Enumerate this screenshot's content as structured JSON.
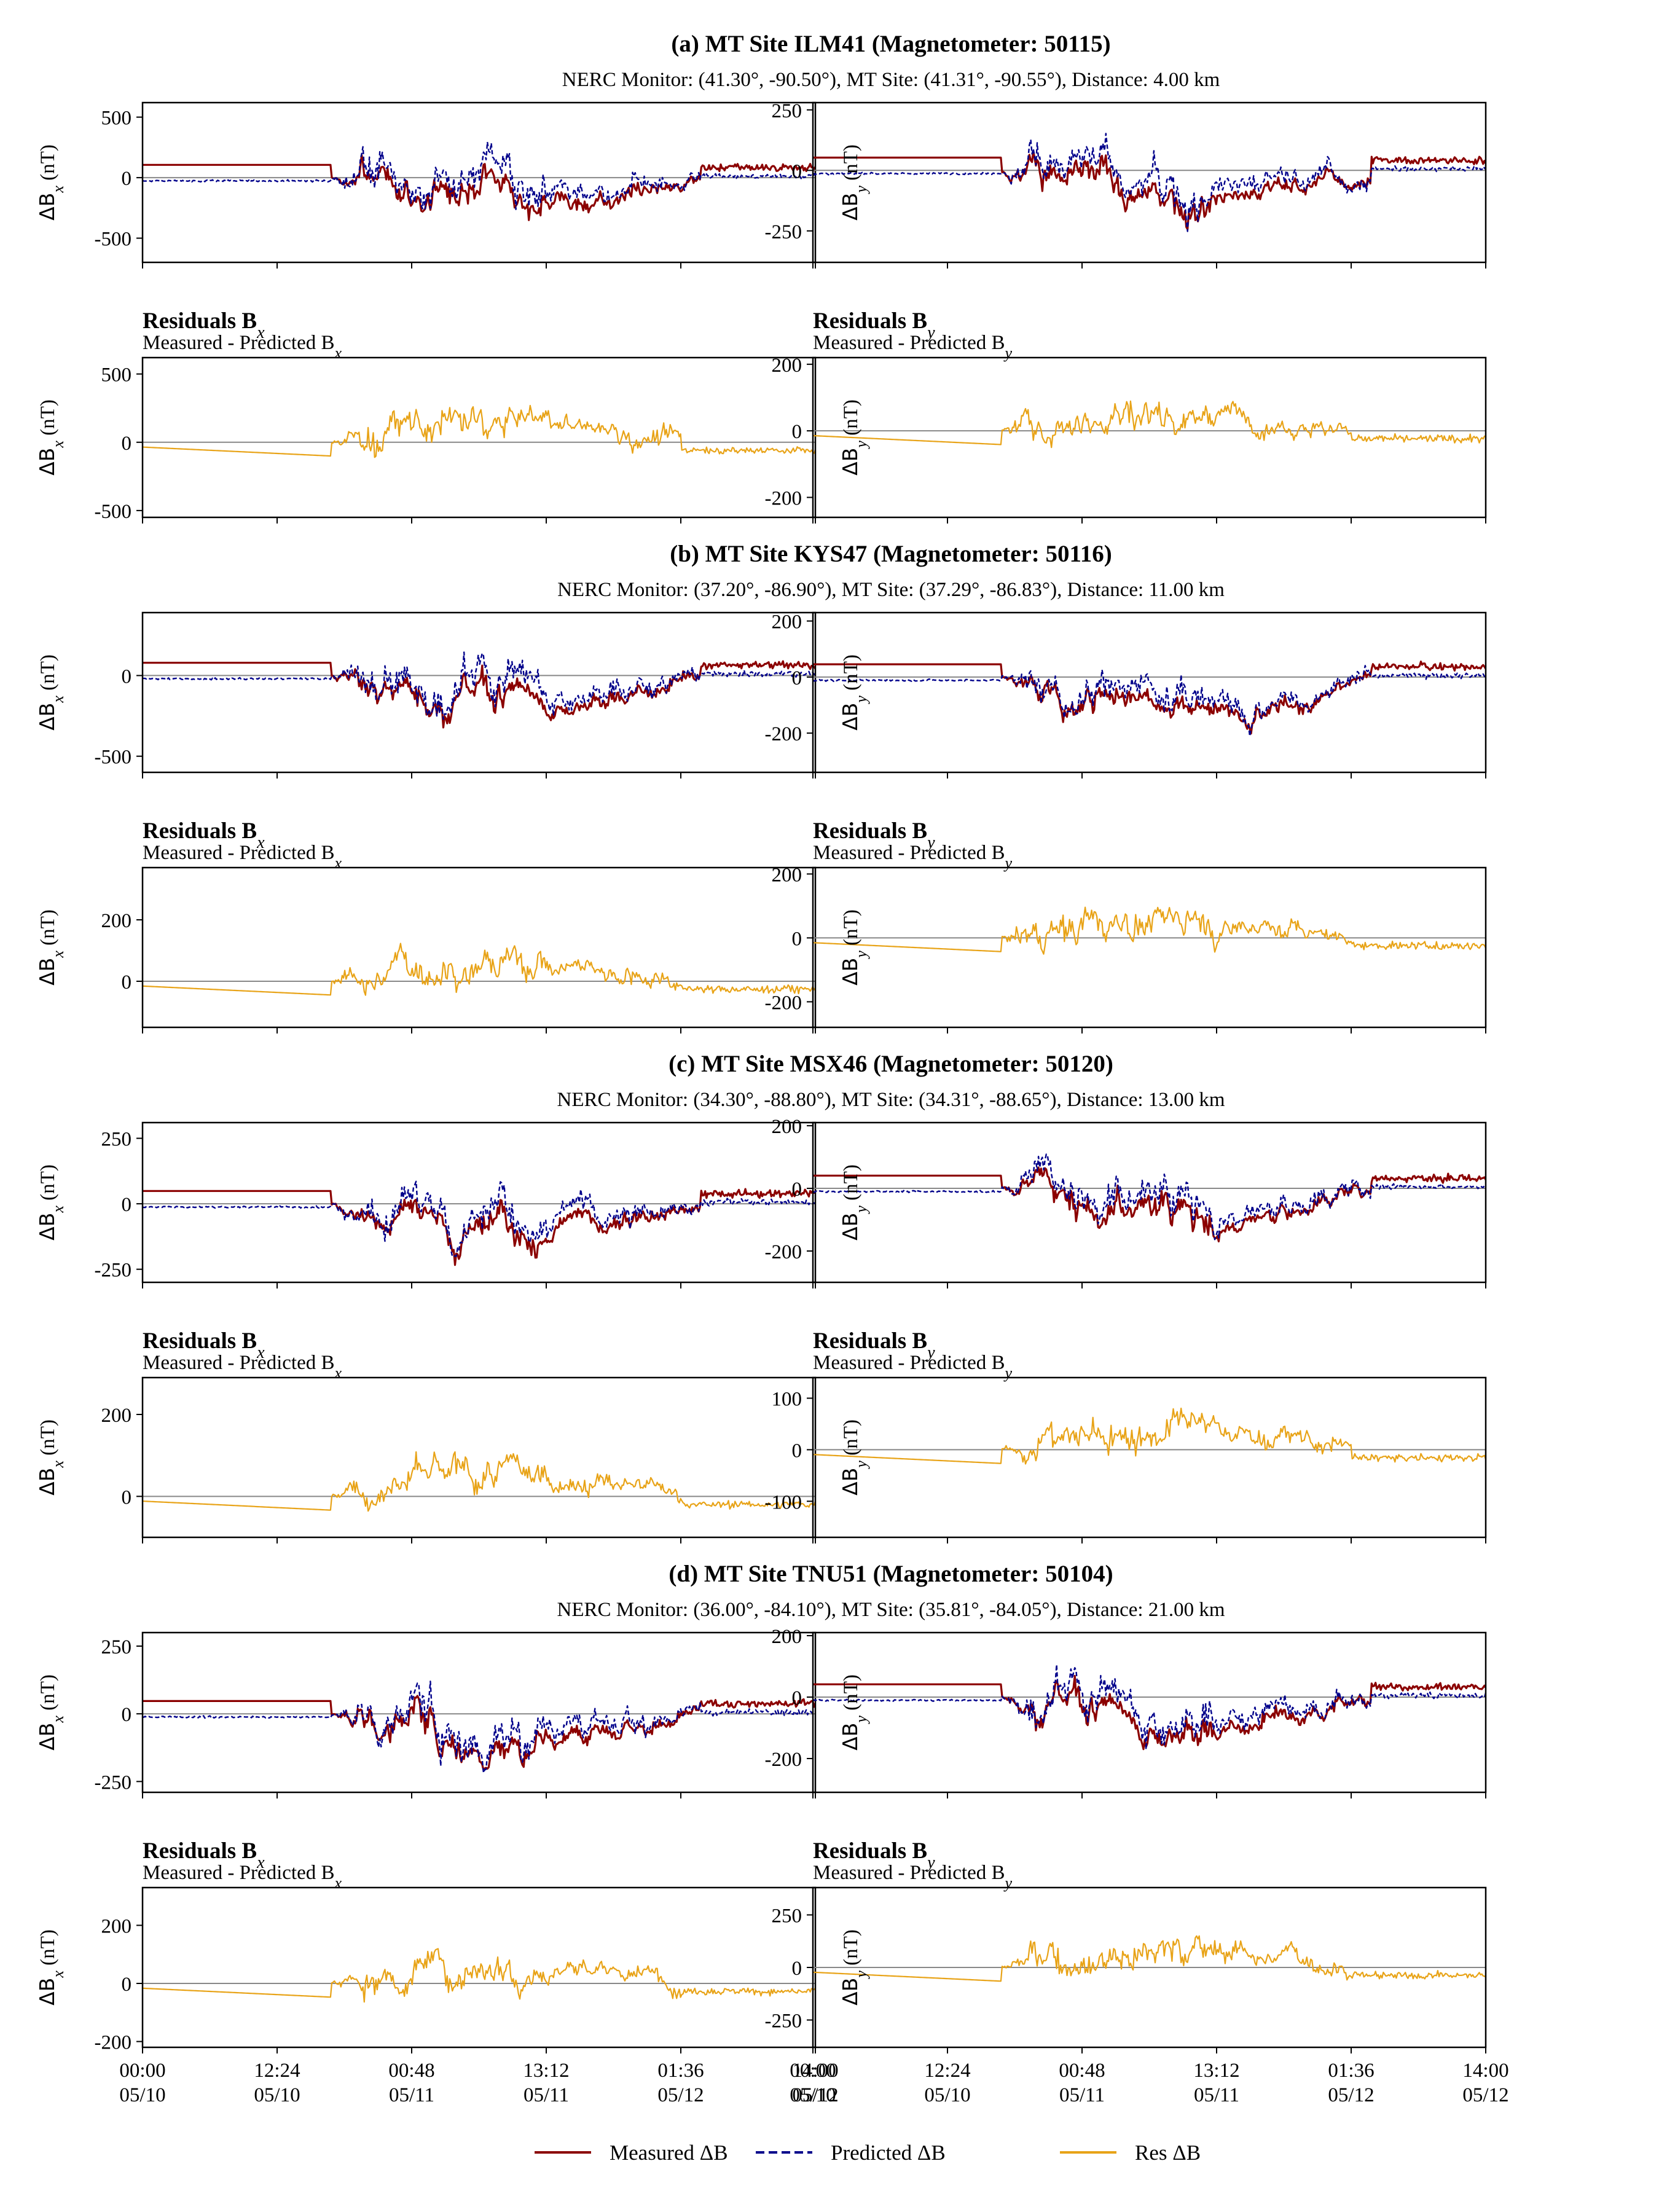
{
  "figure": {
    "x_tick_labels": [
      [
        "00:00",
        "05/10"
      ],
      [
        "12:24",
        "05/10"
      ],
      [
        "00:48",
        "05/11"
      ],
      [
        "13:12",
        "05/11"
      ],
      [
        "01:36",
        "05/12"
      ],
      [
        "14:00",
        "05/12"
      ]
    ],
    "legend": [
      {
        "label": "Measured ΔB",
        "color": "#8b0000",
        "style": "solid"
      },
      {
        "label": "Predicted ΔB",
        "color": "#00008b",
        "style": "dashed"
      },
      {
        "label": "Res ΔB",
        "color": "#e8a317",
        "style": "solid"
      }
    ],
    "res_title_x": "Residuals B",
    "res_title_y": "Residuals B",
    "res_sub_x": "Measured - Predicted B",
    "res_sub_y": "Measured - Predicted B",
    "ylabel_x": "ΔB",
    "ylabel_y": "ΔB",
    "ylabel_unit": " (nT)",
    "sub_x": "x",
    "sub_y": "y"
  },
  "chart_data": [
    {
      "type": "line",
      "panel": "a",
      "component": "Bx",
      "kind": "comparison",
      "title": "(a) MT Site ILM41 (Magnetometer: 50115)",
      "subtitle": "NERC Monitor: (41.30°, -90.50°), MT Site: (41.31°, -90.55°), Distance: 4.00 km",
      "ylim": [
        -700,
        620
      ],
      "yticks": [
        500,
        0,
        -500
      ],
      "series": [
        {
          "name": "Measured ΔB",
          "color": "#8b0000"
        },
        {
          "name": "Predicted ΔB",
          "color": "#00008b"
        }
      ]
    },
    {
      "type": "line",
      "panel": "a",
      "component": "By",
      "kind": "comparison",
      "ylim": [
        -380,
        280
      ],
      "yticks": [
        250,
        0,
        -250
      ],
      "series": [
        {
          "name": "Measured ΔB",
          "color": "#8b0000"
        },
        {
          "name": "Predicted ΔB",
          "color": "#00008b"
        }
      ]
    },
    {
      "type": "line",
      "panel": "a",
      "component": "Bx",
      "kind": "residual",
      "ylim": [
        -550,
        620
      ],
      "yticks": [
        500,
        0,
        -500
      ],
      "series": [
        {
          "name": "Res ΔB",
          "color": "#e8a317"
        }
      ]
    },
    {
      "type": "line",
      "panel": "a",
      "component": "By",
      "kind": "residual",
      "ylim": [
        -260,
        220
      ],
      "yticks": [
        200,
        0,
        -200
      ],
      "series": [
        {
          "name": "Res ΔB",
          "color": "#e8a317"
        }
      ]
    },
    {
      "type": "line",
      "panel": "b",
      "component": "Bx",
      "kind": "comparison",
      "title": "(b) MT Site KYS47 (Magnetometer: 50116)",
      "subtitle": "NERC Monitor: (37.20°, -86.90°), MT Site: (37.29°, -86.83°), Distance: 11.00 km",
      "ylim": [
        -600,
        390
      ],
      "yticks": [
        0,
        -500
      ],
      "series": [
        {
          "name": "Measured ΔB",
          "color": "#8b0000"
        },
        {
          "name": "Predicted ΔB",
          "color": "#00008b"
        }
      ]
    },
    {
      "type": "line",
      "panel": "b",
      "component": "By",
      "kind": "comparison",
      "ylim": [
        -340,
        230
      ],
      "yticks": [
        200,
        0,
        -200
      ],
      "series": [
        {
          "name": "Measured ΔB",
          "color": "#8b0000"
        },
        {
          "name": "Predicted ΔB",
          "color": "#00008b"
        }
      ]
    },
    {
      "type": "line",
      "panel": "b",
      "component": "Bx",
      "kind": "residual",
      "ylim": [
        -150,
        370
      ],
      "yticks": [
        200,
        0
      ],
      "series": [
        {
          "name": "Res ΔB",
          "color": "#e8a317"
        }
      ]
    },
    {
      "type": "line",
      "panel": "b",
      "component": "By",
      "kind": "residual",
      "ylim": [
        -280,
        220
      ],
      "yticks": [
        200,
        0,
        -200
      ],
      "series": [
        {
          "name": "Res ΔB",
          "color": "#e8a317"
        }
      ]
    },
    {
      "type": "line",
      "panel": "c",
      "component": "Bx",
      "kind": "comparison",
      "title": "(c) MT Site MSX46 (Magnetometer: 50120)",
      "subtitle": "NERC Monitor: (34.30°, -88.80°), MT Site: (34.31°, -88.65°), Distance: 13.00 km",
      "ylim": [
        -300,
        310
      ],
      "yticks": [
        250,
        0,
        -250
      ],
      "series": [
        {
          "name": "Measured ΔB",
          "color": "#8b0000"
        },
        {
          "name": "Predicted ΔB",
          "color": "#00008b"
        }
      ]
    },
    {
      "type": "line",
      "panel": "c",
      "component": "By",
      "kind": "comparison",
      "ylim": [
        -300,
        210
      ],
      "yticks": [
        200,
        0,
        -200
      ],
      "series": [
        {
          "name": "Measured ΔB",
          "color": "#8b0000"
        },
        {
          "name": "Predicted ΔB",
          "color": "#00008b"
        }
      ]
    },
    {
      "type": "line",
      "panel": "c",
      "component": "Bx",
      "kind": "residual",
      "ylim": [
        -100,
        290
      ],
      "yticks": [
        200,
        0
      ],
      "series": [
        {
          "name": "Res ΔB",
          "color": "#e8a317"
        }
      ]
    },
    {
      "type": "line",
      "panel": "c",
      "component": "By",
      "kind": "residual",
      "ylim": [
        -170,
        140
      ],
      "yticks": [
        100,
        0,
        -100
      ],
      "series": [
        {
          "name": "Res ΔB",
          "color": "#e8a317"
        }
      ]
    },
    {
      "type": "line",
      "panel": "d",
      "component": "Bx",
      "kind": "comparison",
      "title": "(d) MT Site TNU51 (Magnetometer: 50104)",
      "subtitle": "NERC Monitor: (36.00°, -84.10°), MT Site: (35.81°, -84.05°), Distance: 21.00 km",
      "ylim": [
        -290,
        300
      ],
      "yticks": [
        250,
        0,
        -250
      ],
      "series": [
        {
          "name": "Measured ΔB",
          "color": "#8b0000"
        },
        {
          "name": "Predicted ΔB",
          "color": "#00008b"
        }
      ]
    },
    {
      "type": "line",
      "panel": "d",
      "component": "By",
      "kind": "comparison",
      "ylim": [
        -310,
        210
      ],
      "yticks": [
        200,
        0,
        -200
      ],
      "series": [
        {
          "name": "Measured ΔB",
          "color": "#8b0000"
        },
        {
          "name": "Predicted ΔB",
          "color": "#00008b"
        }
      ]
    },
    {
      "type": "line",
      "panel": "d",
      "component": "Bx",
      "kind": "residual",
      "ylim": [
        -220,
        330
      ],
      "yticks": [
        200,
        0,
        -200
      ],
      "series": [
        {
          "name": "Res ΔB",
          "color": "#e8a317"
        }
      ]
    },
    {
      "type": "line",
      "panel": "d",
      "component": "By",
      "kind": "residual",
      "ylim": [
        -380,
        380
      ],
      "yticks": [
        250,
        0,
        -250
      ],
      "series": [
        {
          "name": "Res ΔB",
          "color": "#e8a317"
        }
      ]
    }
  ]
}
